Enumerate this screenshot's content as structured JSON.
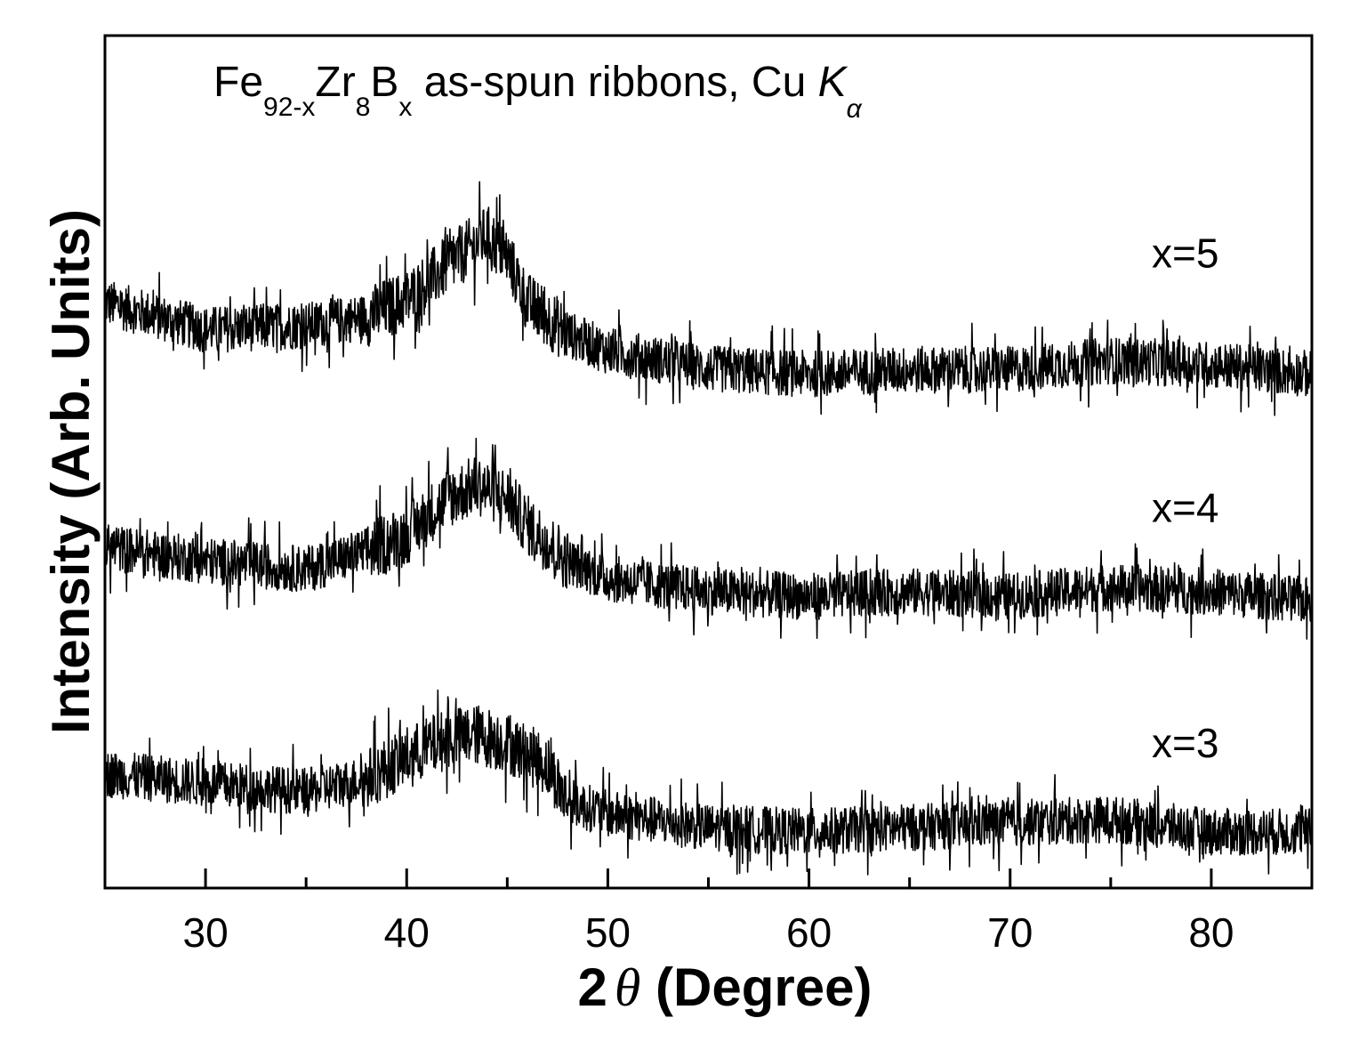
{
  "chart_data": {
    "type": "line",
    "title": {
      "base1": "Fe",
      "sub1": "92-x",
      "base2": "Zr",
      "sub2": "8",
      "base3": "B",
      "sub3": "x",
      "rest": " as-spun ribbons, Cu ",
      "k": "K",
      "k_sub": "α"
    },
    "xlabel": {
      "prefix": "2",
      "theta": "θ",
      "suffix": " (Degree)"
    },
    "ylabel": "Intensity (Arb. Units)",
    "xlim": [
      25,
      85
    ],
    "ylim": [
      0,
      100
    ],
    "y_ticks_shown": false,
    "grid": false,
    "x_ticks": [
      30,
      40,
      50,
      60,
      70,
      80
    ],
    "x_minor_ticks": [
      35,
      45,
      55,
      65,
      75,
      85
    ],
    "line_color": "#000000",
    "series": [
      {
        "name": "x=5",
        "x": [
          25,
          30,
          35,
          38,
          40,
          42,
          44,
          45,
          46,
          48,
          50,
          55,
          60,
          65,
          70,
          75,
          80,
          85
        ],
        "y": [
          68.7,
          65.5,
          66,
          67,
          69,
          73,
          76.6,
          74,
          68.7,
          65,
          63,
          60.9,
          60.3,
          60.8,
          60.8,
          61.9,
          61.4,
          60.3
        ]
      },
      {
        "name": "x=4",
        "x": [
          25,
          30,
          35,
          38,
          40,
          42,
          43.5,
          45,
          46,
          48,
          50,
          55,
          60,
          65,
          70,
          75,
          80,
          85
        ],
        "y": [
          40,
          38.4,
          37.4,
          39.5,
          41.5,
          45.7,
          47.3,
          45.7,
          42.6,
          38.4,
          36.3,
          34.8,
          34.2,
          34.8,
          34.2,
          35.3,
          34.8,
          33.7
        ]
      },
      {
        "name": "x=3",
        "x": [
          25,
          30,
          35,
          38,
          40,
          42,
          43.5,
          45,
          47,
          48,
          50,
          55,
          60,
          65,
          70,
          75,
          80,
          85
        ],
        "y": [
          13.4,
          12.3,
          11.3,
          12.8,
          15.4,
          17.5,
          18,
          17,
          14.4,
          10.2,
          8.7,
          7.1,
          6.6,
          7.1,
          7.6,
          8.1,
          6.6,
          6.6
        ]
      }
    ]
  }
}
